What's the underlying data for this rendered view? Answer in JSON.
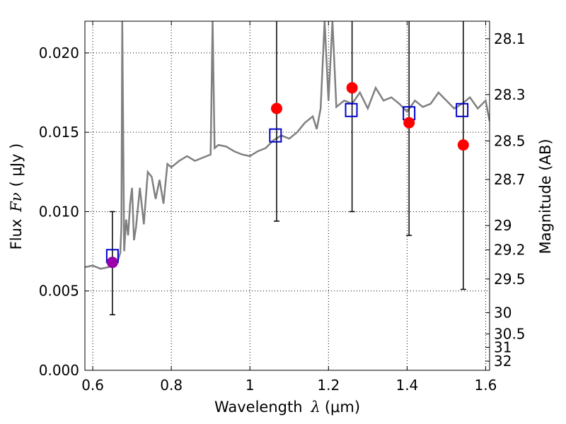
{
  "chart_data": {
    "type": "scatter",
    "xlabel": "Wavelength",
    "xlabel_symbol": "λ",
    "xlabel_unit": "(μm)",
    "ylabel": "Flux",
    "ylabel_symbol": "Fν",
    "ylabel_unit": "( μJy )",
    "y2label": "Magnitude (AB)",
    "xlim": [
      0.58,
      1.61
    ],
    "ylim": [
      0.0,
      0.022
    ],
    "x_ticks": [
      0.6,
      0.8,
      1.0,
      1.2,
      1.4,
      1.6
    ],
    "x_tick_labels": [
      "0.6",
      "0.8",
      "1",
      "1.2",
      "1.4",
      "1.6"
    ],
    "y_ticks": [
      0.0,
      0.005,
      0.01,
      0.015,
      0.02
    ],
    "y_tick_labels": [
      "0.000",
      "0.005",
      "0.010",
      "0.015",
      "0.020"
    ],
    "y2_tick_labels": [
      "28.1",
      "28.3",
      "28.5",
      "28.7",
      "29",
      "29.2",
      "29.5",
      "30",
      "30.5",
      "31",
      "32"
    ],
    "grid": true,
    "colors": {
      "template": "#808080",
      "observed": "#ff0000",
      "model": "#0000cc",
      "blended": "#9900aa",
      "error": "#000000"
    },
    "template_spectrum": {
      "x": [
        0.58,
        0.6,
        0.62,
        0.64,
        0.66,
        0.665,
        0.67,
        0.673,
        0.675,
        0.68,
        0.685,
        0.69,
        0.695,
        0.7,
        0.705,
        0.71,
        0.72,
        0.73,
        0.74,
        0.75,
        0.76,
        0.77,
        0.78,
        0.79,
        0.8,
        0.82,
        0.84,
        0.86,
        0.88,
        0.9,
        0.905,
        0.91,
        0.92,
        0.94,
        0.96,
        0.98,
        1.0,
        1.02,
        1.04,
        1.06,
        1.08,
        1.1,
        1.12,
        1.14,
        1.16,
        1.17,
        1.18,
        1.19,
        1.2,
        1.21,
        1.22,
        1.24,
        1.26,
        1.28,
        1.3,
        1.32,
        1.34,
        1.36,
        1.38,
        1.4,
        1.42,
        1.44,
        1.46,
        1.48,
        1.5,
        1.52,
        1.54,
        1.56,
        1.58,
        1.6,
        1.61
      ],
      "y": [
        0.0065,
        0.0066,
        0.0064,
        0.0065,
        0.0067,
        0.007,
        0.0074,
        0.009,
        0.022,
        0.0075,
        0.0095,
        0.0085,
        0.0105,
        0.0115,
        0.0082,
        0.009,
        0.0115,
        0.0092,
        0.0125,
        0.0122,
        0.0108,
        0.012,
        0.0105,
        0.013,
        0.0128,
        0.0132,
        0.0135,
        0.0132,
        0.0134,
        0.0136,
        0.022,
        0.014,
        0.0142,
        0.0141,
        0.0138,
        0.0136,
        0.0135,
        0.0138,
        0.014,
        0.0145,
        0.0148,
        0.0146,
        0.015,
        0.0156,
        0.016,
        0.0152,
        0.0165,
        0.022,
        0.017,
        0.022,
        0.0166,
        0.017,
        0.0168,
        0.0175,
        0.0165,
        0.0178,
        0.017,
        0.0172,
        0.0168,
        0.0163,
        0.017,
        0.0166,
        0.0168,
        0.0175,
        0.017,
        0.0165,
        0.0168,
        0.0172,
        0.0165,
        0.017,
        0.0157
      ]
    },
    "series": [
      {
        "marker": "open-square",
        "x": [
          0.65,
          1.065,
          1.258,
          1.405,
          1.54
        ],
        "y": [
          0.0072,
          0.0148,
          0.0164,
          0.0162,
          0.0164
        ]
      },
      {
        "marker": "filled-circle",
        "x": [
          0.65,
          1.068,
          1.26,
          1.405,
          1.543
        ],
        "y": [
          0.0068,
          0.0165,
          0.0178,
          0.0156,
          0.0142
        ],
        "err_low": [
          0.0033,
          0.0071,
          0.0078,
          0.0071,
          0.0091
        ],
        "err_high": [
          0.0032,
          0.0055,
          0.0042,
          0.0064,
          0.0078
        ]
      }
    ]
  }
}
